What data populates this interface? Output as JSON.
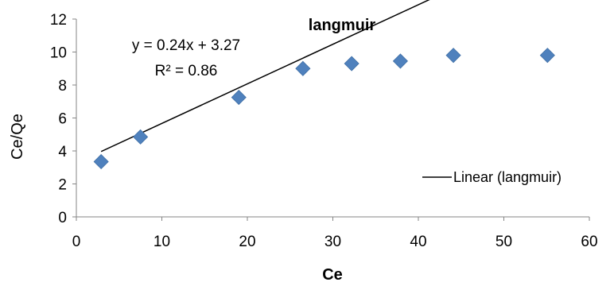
{
  "chart_data": {
    "type": "scatter",
    "title": "langmuir",
    "xlabel": "Ce",
    "ylabel": "Ce/Qe",
    "xlim": [
      0,
      60
    ],
    "ylim": [
      0,
      12
    ],
    "xticks": [
      "0",
      "10",
      "20",
      "30",
      "40",
      "50",
      "60"
    ],
    "yticks": [
      "0",
      "2",
      "4",
      "6",
      "8",
      "10",
      "12"
    ],
    "grid": false,
    "series": [
      {
        "marker": "diamond",
        "color": "#4f81bd",
        "x": [
          2.9,
          7.5,
          19.0,
          26.5,
          32.2,
          37.9,
          44.1,
          55.1
        ],
        "y": [
          3.35,
          4.85,
          7.25,
          9.0,
          9.3,
          9.45,
          9.8,
          9.8
        ]
      }
    ],
    "trendline": {
      "name": "Linear (langmuir)",
      "slope": 0.24,
      "intercept": 3.27,
      "x_range": [
        2.9,
        55.1
      ],
      "color": "#000000",
      "equation": "y = 0.24x + 3.27",
      "r_squared": "R² = 0.86"
    },
    "legend": {
      "position": "right",
      "entries": [
        "Linear (langmuir)"
      ]
    }
  }
}
